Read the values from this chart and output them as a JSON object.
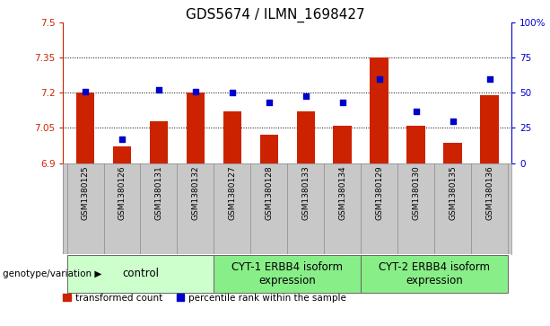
{
  "title": "GDS5674 / ILMN_1698427",
  "samples": [
    "GSM1380125",
    "GSM1380126",
    "GSM1380131",
    "GSM1380132",
    "GSM1380127",
    "GSM1380128",
    "GSM1380133",
    "GSM1380134",
    "GSM1380129",
    "GSM1380130",
    "GSM1380135",
    "GSM1380136"
  ],
  "bar_values": [
    7.2,
    6.97,
    7.08,
    7.2,
    7.12,
    7.02,
    7.12,
    7.06,
    7.35,
    7.06,
    6.985,
    7.19
  ],
  "dot_values": [
    51,
    17,
    52,
    51,
    50,
    43,
    48,
    43,
    60,
    37,
    30,
    60
  ],
  "ylim_left": [
    6.9,
    7.5
  ],
  "ylim_right": [
    0,
    100
  ],
  "yticks_left": [
    6.9,
    7.05,
    7.2,
    7.35,
    7.5
  ],
  "ytick_labels_left": [
    "6.9",
    "7.05",
    "7.2",
    "7.35",
    "7.5"
  ],
  "yticks_right": [
    0,
    25,
    50,
    75,
    100
  ],
  "ytick_labels_right": [
    "0",
    "25",
    "50",
    "75",
    "100%"
  ],
  "hlines": [
    7.05,
    7.2,
    7.35
  ],
  "bar_color": "#CC2200",
  "dot_color": "#0000CC",
  "bar_width": 0.5,
  "groups": [
    {
      "label": "control",
      "indices": [
        0,
        3
      ],
      "color": "#CCFFCC"
    },
    {
      "label": "CYT-1 ERBB4 isoform\nexpression",
      "indices": [
        4,
        7
      ],
      "color": "#88EE88"
    },
    {
      "label": "CYT-2 ERBB4 isoform\nexpression",
      "indices": [
        8,
        11
      ],
      "color": "#88EE88"
    }
  ],
  "legend_items": [
    {
      "label": "transformed count",
      "color": "#CC2200"
    },
    {
      "label": "percentile rank within the sample",
      "color": "#0000CC"
    }
  ],
  "genotype_label": "genotype/variation",
  "plot_bg_color": "#FFFFFF",
  "tick_area_color": "#C8C8C8",
  "right_axis_color": "#0000CC",
  "left_axis_color": "#CC2200",
  "title_fontsize": 11,
  "tick_fontsize": 7.5,
  "group_label_fontsize": 8.5,
  "sample_fontsize": 6.5
}
